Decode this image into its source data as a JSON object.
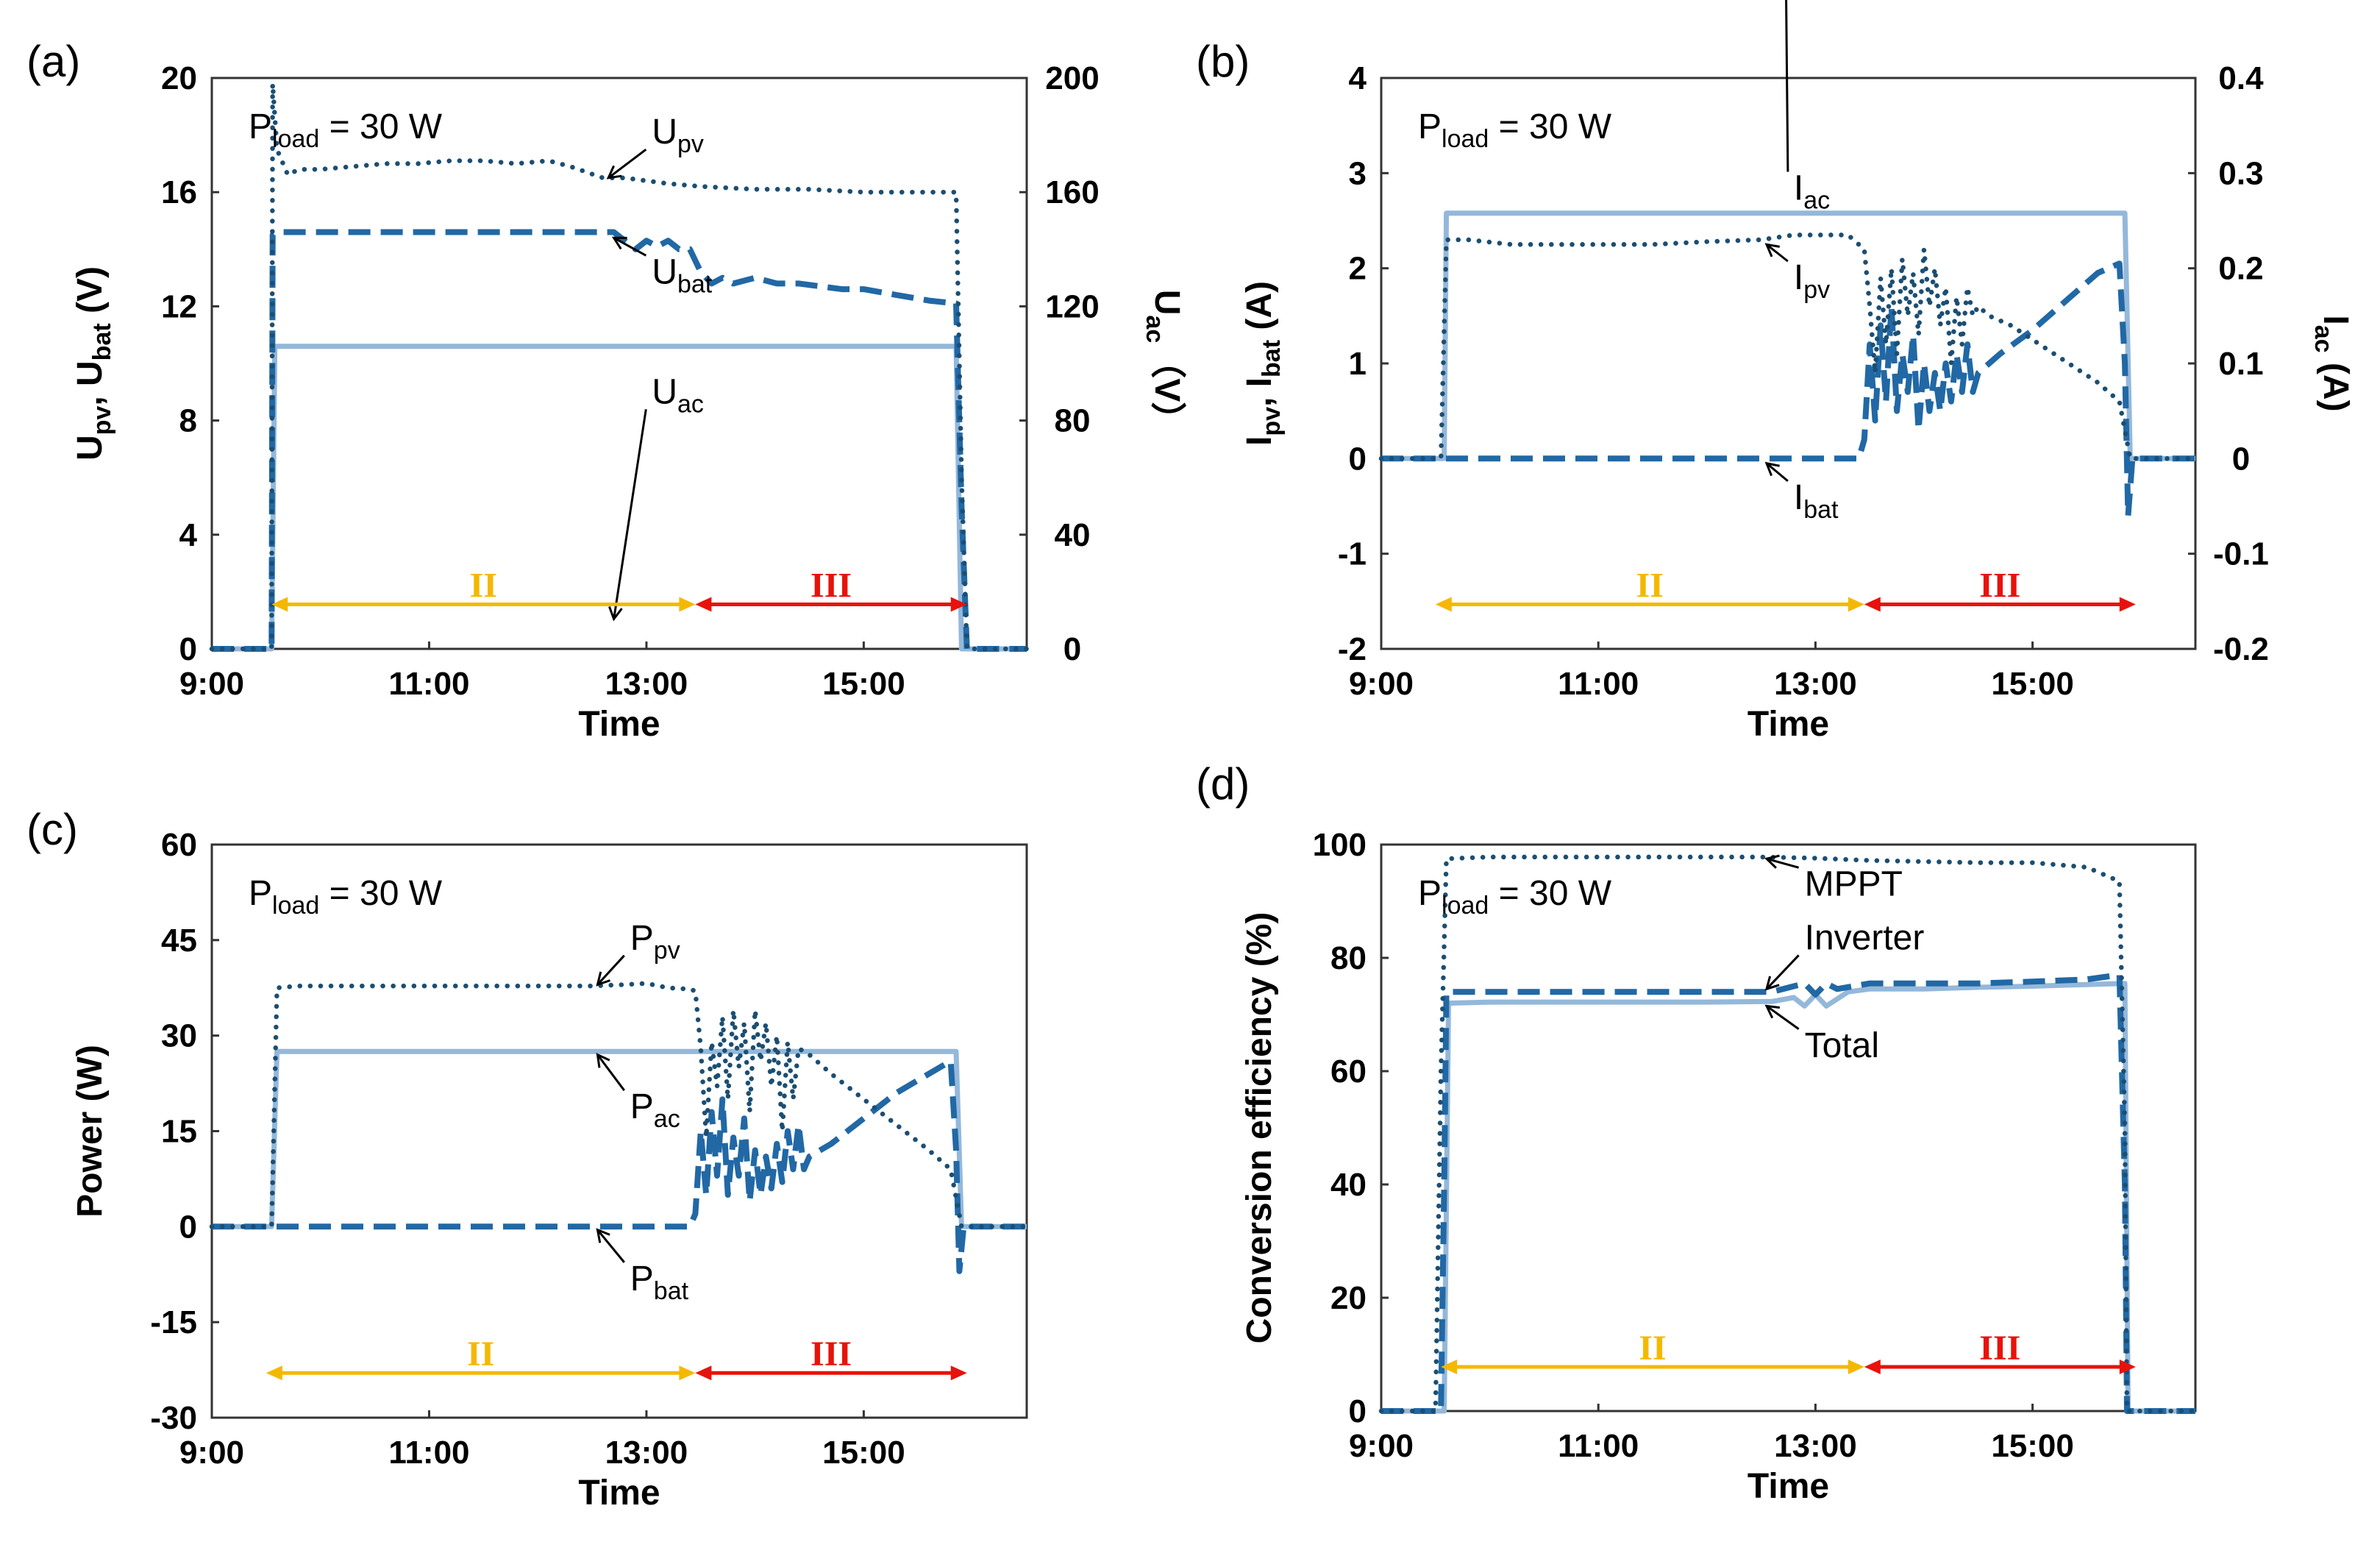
{
  "colors": {
    "pv": "#1b4e72",
    "bat": "#2168a5",
    "ac": "#94b8da",
    "regionII": "#f5b800",
    "regionIII": "#e8120c"
  },
  "chart_data": [
    {
      "id": "a",
      "panel_label": "(a)",
      "type": "line",
      "xlabel": "Time",
      "xlim": [
        9,
        16.5
      ],
      "xticks": [
        9,
        11,
        13,
        15
      ],
      "xtick_labels": [
        "9:00",
        "11:00",
        "13:00",
        "15:00"
      ],
      "ylabel": "U_pv, U_bat (V)",
      "ylim": [
        0,
        20
      ],
      "yticks": [
        0,
        4,
        8,
        12,
        16,
        20
      ],
      "ytick_labels": [
        "0",
        "4",
        "8",
        "12",
        "16",
        "20"
      ],
      "y2label": "U_ac (V)",
      "y2lim": [
        0,
        200
      ],
      "y2ticks": [
        0,
        40,
        80,
        120,
        160,
        200
      ],
      "y2tick_labels": [
        "0",
        "40",
        "80",
        "120",
        "160",
        "200"
      ],
      "load": {
        "main": "P",
        "sub": "load",
        "rest": " = 30 W"
      },
      "regions": [
        {
          "label": "II",
          "from": 9.55,
          "to": 13.45
        },
        {
          "label": "III",
          "from": 13.45,
          "to": 15.95
        }
      ],
      "series": [
        {
          "name": "U_pv",
          "label_main": "U",
          "label_sub": "pv",
          "style": "dotted",
          "axis": "left",
          "x": [
            9,
            9.55,
            9.56,
            9.6,
            9.7,
            9.8,
            10.0,
            10.3,
            10.6,
            10.9,
            11.2,
            11.5,
            11.8,
            12.1,
            12.3,
            12.6,
            12.8,
            13.0,
            13.2,
            13.5,
            14.0,
            14.5,
            15.0,
            15.5,
            15.85,
            15.9,
            15.95,
            16.5
          ],
          "values": [
            0,
            0,
            19.8,
            17.5,
            16.6,
            16.8,
            16.8,
            16.9,
            17.0,
            17.0,
            17.1,
            17.1,
            17.0,
            17.1,
            16.9,
            16.5,
            16.5,
            16.4,
            16.3,
            16.2,
            16.1,
            16.1,
            16.0,
            16.0,
            16.0,
            6.0,
            0,
            0
          ]
        },
        {
          "name": "U_bat",
          "label_main": "U",
          "label_sub": "bat",
          "style": "dashed",
          "axis": "left",
          "x": [
            9,
            9.55,
            9.56,
            9.6,
            10.0,
            11.0,
            12.0,
            12.7,
            12.9,
            13.0,
            13.1,
            13.2,
            13.3,
            13.4,
            13.5,
            13.6,
            13.7,
            13.8,
            14.0,
            14.2,
            14.4,
            14.6,
            14.8,
            15.0,
            15.3,
            15.6,
            15.85,
            15.9,
            15.95,
            16.5
          ],
          "values": [
            0,
            0,
            14.5,
            14.6,
            14.6,
            14.6,
            14.6,
            14.6,
            14.0,
            14.3,
            14.1,
            14.3,
            14.0,
            14.0,
            13.2,
            12.8,
            13.0,
            12.8,
            13.0,
            12.8,
            12.8,
            12.7,
            12.6,
            12.6,
            12.4,
            12.2,
            12.1,
            5.0,
            0,
            0
          ]
        },
        {
          "name": "U_ac",
          "label_main": "U",
          "label_sub": "ac",
          "style": "solid",
          "axis": "right",
          "x": [
            9,
            9.55,
            9.58,
            15.85,
            15.9,
            16.5
          ],
          "values": [
            0,
            0,
            106,
            106,
            0,
            0
          ]
        }
      ],
      "annotations": [
        {
          "series": "U_pv",
          "tx": 12.65,
          "ty": 16.5,
          "lx": 13.05,
          "ly": 17.7
        },
        {
          "series": "U_bat",
          "tx": 12.7,
          "ty": 14.4,
          "lx": 13.05,
          "ly": 12.8
        },
        {
          "series": "U_ac",
          "tx": 12.7,
          "ty": 10.45,
          "lx": 13.05,
          "ly": 8.6
        }
      ]
    },
    {
      "id": "b",
      "panel_label": "(b)",
      "type": "line",
      "xlabel": "Time",
      "xlim": [
        9,
        16.5
      ],
      "xticks": [
        9,
        11,
        13,
        15
      ],
      "xtick_labels": [
        "9:00",
        "11:00",
        "13:00",
        "15:00"
      ],
      "ylabel": "I_pv, I_bat (A)",
      "ylim": [
        -2,
        4
      ],
      "yticks": [
        -2,
        -1,
        0,
        1,
        2,
        3,
        4
      ],
      "ytick_labels": [
        "-2",
        "-1",
        "0",
        "1",
        "2",
        "3",
        "4"
      ],
      "y2label": "I_ac (A)",
      "y2lim": [
        -0.2,
        0.4
      ],
      "y2ticks": [
        -0.2,
        -0.1,
        0,
        0.1,
        0.2,
        0.3,
        0.4
      ],
      "y2tick_labels": [
        "-0.2",
        "-0.1",
        "0",
        "0.1",
        "0.2",
        "0.3",
        "0.4"
      ],
      "load": {
        "main": "P",
        "sub": "load",
        "rest": " = 30 W"
      },
      "regions": [
        {
          "label": "II",
          "from": 9.5,
          "to": 13.45
        },
        {
          "label": "III",
          "from": 13.45,
          "to": 15.95
        }
      ],
      "series": [
        {
          "name": "I_pv",
          "label_main": "I",
          "label_sub": "pv",
          "style": "dotted",
          "axis": "left",
          "x": [
            9,
            9.55,
            9.6,
            9.8,
            10.2,
            10.6,
            11.0,
            11.5,
            12.0,
            12.5,
            12.8,
            13.0,
            13.3,
            13.45,
            13.5,
            13.55,
            13.6,
            13.65,
            13.7,
            13.75,
            13.8,
            13.85,
            13.9,
            13.95,
            14.0,
            14.05,
            14.1,
            14.15,
            14.2,
            14.25,
            14.3,
            14.35,
            14.4,
            14.45,
            14.5,
            14.6,
            14.8,
            15.0,
            15.2,
            15.4,
            15.6,
            15.8,
            15.9,
            16.5
          ],
          "values": [
            0,
            0,
            2.3,
            2.3,
            2.25,
            2.25,
            2.25,
            2.25,
            2.28,
            2.3,
            2.35,
            2.35,
            2.35,
            2.2,
            1.6,
            0.9,
            1.9,
            1.2,
            2.0,
            1.1,
            2.1,
            1.5,
            1.95,
            1.3,
            2.2,
            1.6,
            2.0,
            1.4,
            1.8,
            1.0,
            1.7,
            1.2,
            1.8,
            1.5,
            1.6,
            1.5,
            1.4,
            1.25,
            1.1,
            0.95,
            0.8,
            0.6,
            0,
            0
          ]
        },
        {
          "name": "I_bat",
          "label_main": "I",
          "label_sub": "bat",
          "style": "dashed",
          "axis": "left",
          "x": [
            9,
            9.5,
            12.0,
            13.4,
            13.45,
            13.5,
            13.55,
            13.6,
            13.65,
            13.7,
            13.75,
            13.8,
            13.85,
            13.9,
            13.95,
            14.0,
            14.05,
            14.1,
            14.15,
            14.2,
            14.25,
            14.3,
            14.35,
            14.4,
            14.45,
            14.5,
            14.7,
            15.0,
            15.3,
            15.6,
            15.8,
            15.85,
            15.88,
            15.92,
            16.5
          ],
          "values": [
            0,
            0,
            0,
            0,
            0.2,
            1.2,
            0.4,
            1.4,
            0.6,
            1.6,
            0.5,
            1.1,
            0.7,
            1.3,
            0.3,
            1.0,
            0.5,
            0.9,
            0.5,
            1.0,
            0.6,
            1.1,
            0.7,
            1.2,
            0.7,
            0.9,
            1.1,
            1.35,
            1.65,
            1.95,
            2.05,
            1.0,
            -0.6,
            0,
            0
          ]
        },
        {
          "name": "I_ac",
          "label_main": "I",
          "label_sub": "ac",
          "style": "solid",
          "axis": "right",
          "x": [
            9,
            9.58,
            9.6,
            15.85,
            15.9,
            16.5
          ],
          "values": [
            0,
            0,
            0.258,
            0.258,
            0,
            0
          ]
        }
      ],
      "annotations": [
        {
          "series": "I_ac",
          "tx": 12.55,
          "ty": 2.58,
          "lx": 12.8,
          "ly": 2.72
        },
        {
          "series": "I_pv",
          "tx": 12.55,
          "ty": 2.25,
          "lx": 12.8,
          "ly": 1.78
        },
        {
          "series": "I_bat",
          "tx": 12.55,
          "ty": -0.05,
          "lx": 12.8,
          "ly": -0.53
        }
      ]
    },
    {
      "id": "c",
      "panel_label": "(c)",
      "type": "line",
      "xlabel": "Time",
      "xlim": [
        9,
        16.5
      ],
      "xticks": [
        9,
        11,
        13,
        15
      ],
      "xtick_labels": [
        "9:00",
        "11:00",
        "13:00",
        "15:00"
      ],
      "ylabel": "Power (W)",
      "ylim": [
        -30,
        60
      ],
      "yticks": [
        -30,
        -15,
        0,
        15,
        30,
        45,
        60
      ],
      "ytick_labels": [
        "-30",
        "-15",
        "0",
        "15",
        "30",
        "45",
        "60"
      ],
      "load": {
        "main": "P",
        "sub": "load",
        "rest": " = 30 W"
      },
      "regions": [
        {
          "label": "II",
          "from": 9.5,
          "to": 13.45
        },
        {
          "label": "III",
          "from": 13.45,
          "to": 15.95
        }
      ],
      "series": [
        {
          "name": "P_pv",
          "label_main": "P",
          "label_sub": "pv",
          "style": "dotted",
          "axis": "left",
          "x": [
            9,
            9.55,
            9.6,
            9.8,
            10.2,
            10.6,
            11.0,
            11.5,
            12.0,
            12.5,
            12.8,
            13.0,
            13.2,
            13.4,
            13.45,
            13.5,
            13.55,
            13.6,
            13.65,
            13.7,
            13.75,
            13.8,
            13.85,
            13.9,
            13.95,
            14.0,
            14.05,
            14.1,
            14.15,
            14.2,
            14.25,
            14.3,
            14.35,
            14.4,
            14.5,
            14.7,
            15.0,
            15.3,
            15.6,
            15.8,
            15.9,
            16.5
          ],
          "values": [
            0,
            0,
            37.5,
            37.8,
            37.8,
            37.8,
            37.8,
            37.8,
            37.8,
            37.8,
            38.0,
            38.2,
            37.5,
            37.3,
            37.0,
            28,
            14,
            29,
            22,
            33,
            20,
            34,
            25,
            32,
            18,
            34,
            26,
            32,
            22,
            30,
            15,
            29,
            20,
            28,
            27,
            24,
            20,
            16,
            12,
            9,
            0,
            0
          ]
        },
        {
          "name": "P_bat",
          "label_main": "P",
          "label_sub": "bat",
          "style": "dashed",
          "axis": "left",
          "x": [
            9,
            9.5,
            12.0,
            13.4,
            13.45,
            13.5,
            13.55,
            13.6,
            13.65,
            13.7,
            13.75,
            13.8,
            13.85,
            13.9,
            13.95,
            14.0,
            14.05,
            14.1,
            14.15,
            14.2,
            14.25,
            14.3,
            14.35,
            14.4,
            14.45,
            14.5,
            14.7,
            15.0,
            15.3,
            15.6,
            15.8,
            15.85,
            15.88,
            15.92,
            16.5
          ],
          "values": [
            0,
            0,
            0,
            0,
            2,
            15,
            5,
            18,
            8,
            20,
            5,
            14,
            8,
            17,
            4,
            12,
            5,
            11,
            6,
            13,
            7,
            15,
            9,
            16,
            9,
            11,
            13,
            17,
            21,
            24,
            26,
            12,
            -7,
            0,
            0
          ]
        },
        {
          "name": "P_ac",
          "label_main": "P",
          "label_sub": "ac",
          "style": "solid",
          "axis": "left",
          "x": [
            9,
            9.55,
            9.6,
            15.85,
            15.9,
            16.5
          ],
          "values": [
            0,
            0,
            27.5,
            27.5,
            0,
            0
          ]
        }
      ],
      "annotations": [
        {
          "series": "P_pv",
          "tx": 12.55,
          "ty": 38.0,
          "lx": 12.85,
          "ly": 43.5
        },
        {
          "series": "P_ac",
          "tx": 12.55,
          "ty": 27.0,
          "lx": 12.85,
          "ly": 17.0
        },
        {
          "series": "P_bat",
          "tx": 12.55,
          "ty": -0.5,
          "lx": 12.85,
          "ly": -10.0
        }
      ]
    },
    {
      "id": "d",
      "panel_label": "(d)",
      "type": "line",
      "xlabel": "Time",
      "xlim": [
        9,
        16.5
      ],
      "xticks": [
        9,
        11,
        13,
        15
      ],
      "xtick_labels": [
        "9:00",
        "11:00",
        "13:00",
        "15:00"
      ],
      "ylabel": "Conversion efficiency (%)",
      "ylim": [
        0,
        100
      ],
      "yticks": [
        0,
        20,
        40,
        60,
        80,
        100
      ],
      "ytick_labels": [
        "0",
        "20",
        "40",
        "60",
        "80",
        "100"
      ],
      "load": {
        "main": "P",
        "sub": "load",
        "rest": " = 30 W"
      },
      "regions": [
        {
          "label": "II",
          "from": 9.55,
          "to": 13.45
        },
        {
          "label": "III",
          "from": 13.45,
          "to": 15.95
        }
      ],
      "series": [
        {
          "name": "MPPT",
          "label_main": "MPPT",
          "label_sub": "",
          "style": "dotted",
          "axis": "left",
          "x": [
            9,
            9.5,
            9.55,
            9.6,
            10.0,
            11.0,
            12.0,
            12.5,
            13.0,
            13.5,
            14.0,
            14.5,
            15.0,
            15.5,
            15.8,
            15.85,
            15.87,
            16.5
          ],
          "values": [
            0,
            0,
            60,
            97.5,
            97.8,
            97.8,
            97.8,
            97.8,
            97.6,
            97.2,
            97.0,
            96.8,
            96.8,
            96.0,
            93.5,
            50,
            0,
            0
          ]
        },
        {
          "name": "Inverter",
          "label_main": "Inverter",
          "label_sub": "",
          "style": "dashed",
          "axis": "left",
          "x": [
            9,
            9.55,
            9.58,
            9.6,
            10.0,
            11.0,
            12.0,
            12.6,
            12.9,
            13.0,
            13.1,
            13.2,
            13.5,
            14.0,
            14.5,
            15.0,
            15.5,
            15.8,
            15.85,
            15.87,
            16.5
          ],
          "values": [
            0,
            0,
            40,
            74,
            74,
            74,
            74,
            74,
            75.5,
            73.5,
            75.5,
            74.5,
            75.5,
            75.5,
            75.5,
            75.8,
            76.2,
            77,
            40,
            0,
            0
          ]
        },
        {
          "name": "Total",
          "label_main": "Total",
          "label_sub": "",
          "style": "solid",
          "axis": "left",
          "x": [
            9,
            9.58,
            9.62,
            10.0,
            11.0,
            12.0,
            12.6,
            12.8,
            12.9,
            13.0,
            13.1,
            13.3,
            13.5,
            14.0,
            14.5,
            15.0,
            15.5,
            15.85,
            15.88,
            16.5
          ],
          "values": [
            0,
            0,
            72,
            72.2,
            72.2,
            72.2,
            72.3,
            73.0,
            71.5,
            73.5,
            71.5,
            74.0,
            74.5,
            74.5,
            74.8,
            75.0,
            75.3,
            75.5,
            0,
            0
          ]
        }
      ],
      "annotations": [
        {
          "series": "MPPT",
          "tx": 12.55,
          "ty": 97.5,
          "lx": 12.9,
          "ly": 91.0
        },
        {
          "series": "Inverter",
          "tx": 12.55,
          "ty": 74.5,
          "lx": 12.9,
          "ly": 81.5
        },
        {
          "series": "Total",
          "tx": 12.55,
          "ty": 71.5,
          "lx": 12.9,
          "ly": 62.5
        }
      ]
    }
  ]
}
